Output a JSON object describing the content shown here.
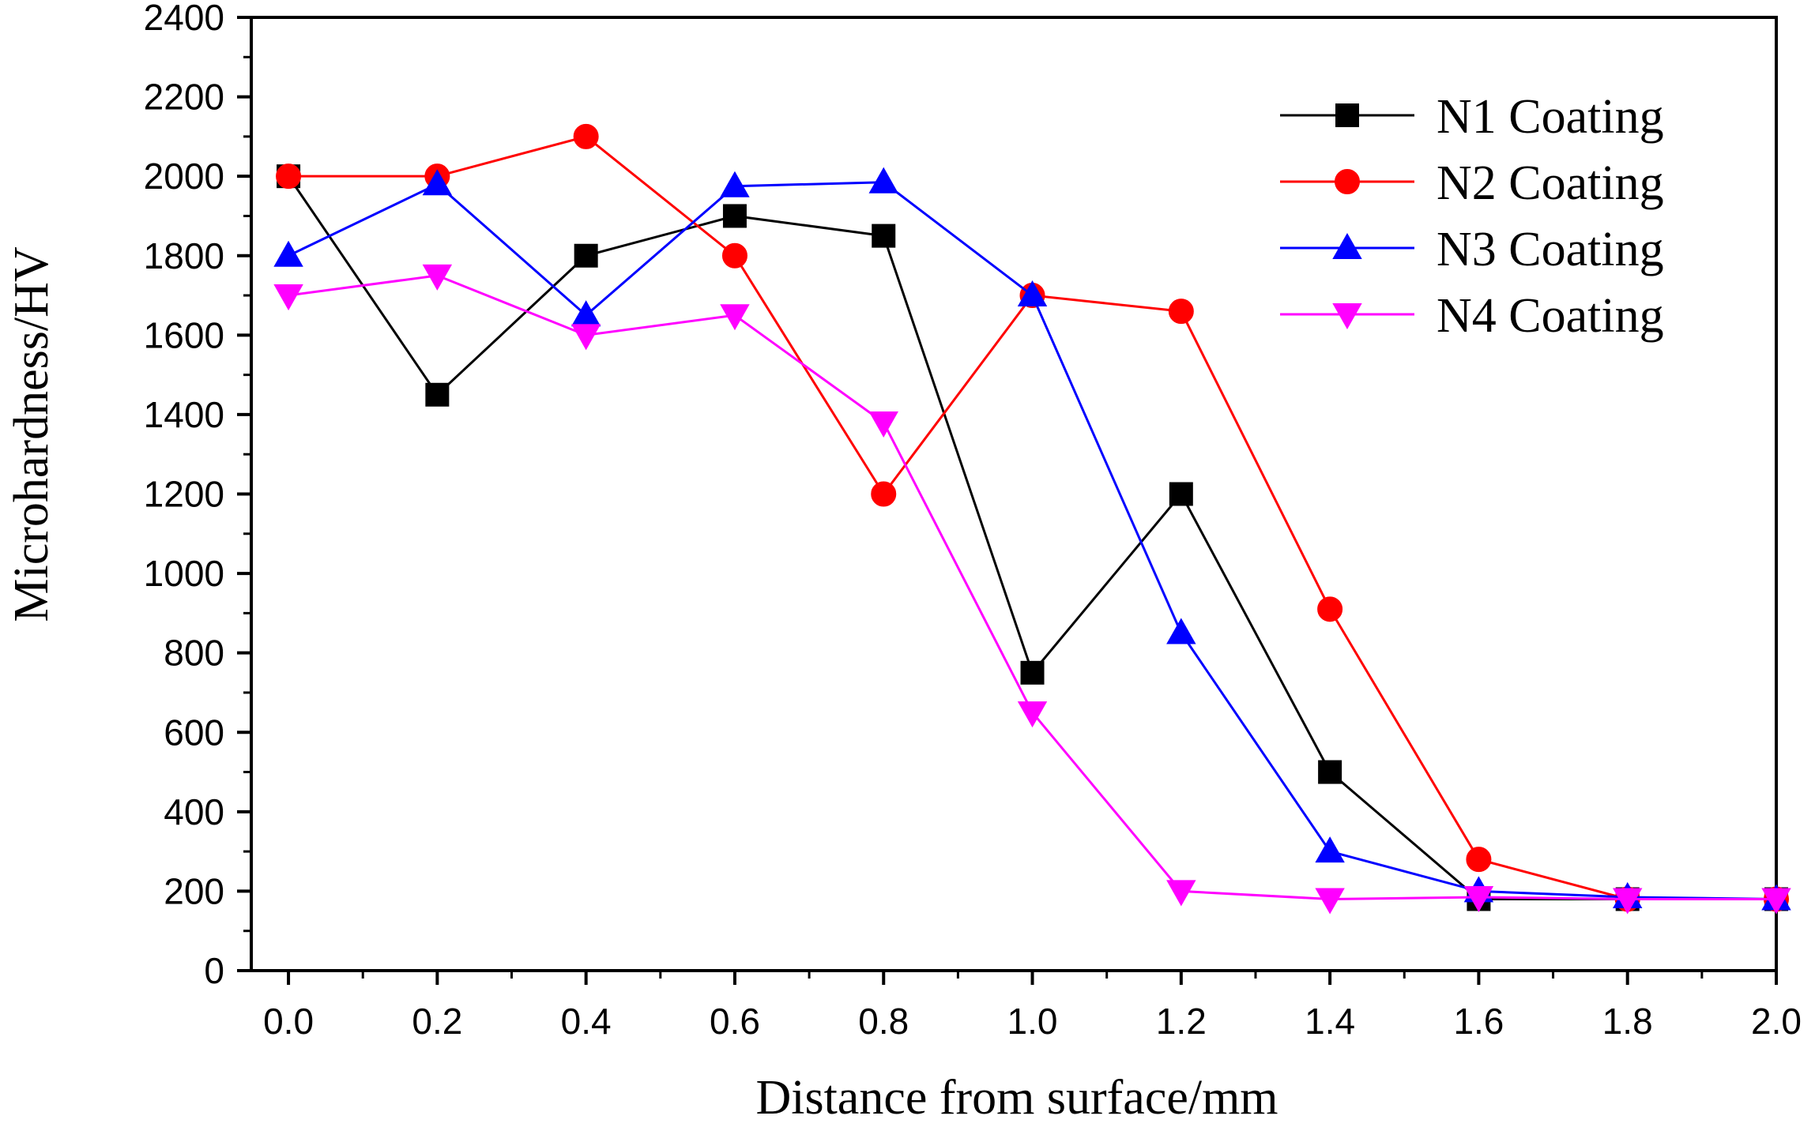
{
  "chart_data": {
    "type": "line",
    "xlabel": "Distance from surface/mm",
    "ylabel": "Microhardness/HV",
    "xlim": [
      -0.05,
      2.0
    ],
    "ylim": [
      0,
      2400
    ],
    "x_ticks": [
      "0.0",
      "0.2",
      "0.4",
      "0.6",
      "0.8",
      "1.0",
      "1.2",
      "1.4",
      "1.6",
      "1.8",
      "2.0"
    ],
    "y_ticks": [
      "0",
      "200",
      "400",
      "600",
      "800",
      "1000",
      "1200",
      "1400",
      "1600",
      "1800",
      "2000",
      "2200",
      "2400"
    ],
    "x": [
      0.0,
      0.2,
      0.4,
      0.6,
      0.8,
      1.0,
      1.2,
      1.4,
      1.6,
      1.8,
      2.0
    ],
    "legend_position": "top-right",
    "grid": false,
    "series": [
      {
        "name": "N1 Coating",
        "color": "#000000",
        "marker": "square",
        "values": [
          2000,
          1450,
          1800,
          1900,
          1850,
          750,
          1200,
          500,
          180,
          180,
          180
        ]
      },
      {
        "name": "N2 Coating",
        "color": "#ff0000",
        "marker": "circle",
        "values": [
          2000,
          2000,
          2100,
          1800,
          1200,
          1700,
          1660,
          910,
          280,
          180,
          180
        ]
      },
      {
        "name": "N3 Coating",
        "color": "#0000ff",
        "marker": "triangle-up",
        "values": [
          1800,
          1980,
          1650,
          1975,
          1985,
          1700,
          850,
          300,
          200,
          185,
          180
        ]
      },
      {
        "name": "N4 Coating",
        "color": "#ff00ff",
        "marker": "triangle-down",
        "values": [
          1700,
          1750,
          1600,
          1650,
          1380,
          650,
          200,
          180,
          185,
          180,
          180
        ]
      }
    ]
  }
}
